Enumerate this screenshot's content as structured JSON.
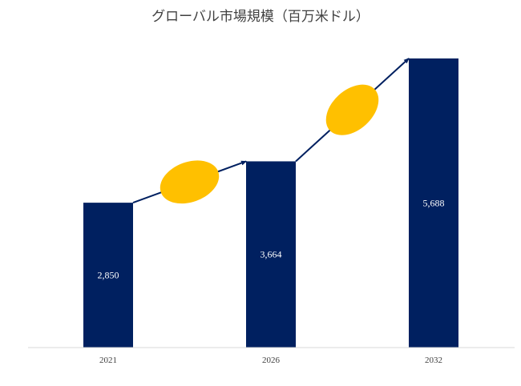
{
  "chart_data": {
    "type": "bar",
    "title": "グローバル市場規模（百万米ドル）",
    "categories": [
      "2021",
      "2026",
      "2032"
    ],
    "values": [
      2850,
      3664,
      5688
    ],
    "value_labels": [
      "2,850",
      "3,664",
      "5,688"
    ],
    "ylim": [
      0,
      5688
    ],
    "grid": false,
    "legend": "none",
    "colors": {
      "bar": "#002060",
      "arrow": "#002060",
      "ellipse": "#FFC000",
      "axis": "#d9d9d9",
      "text": "#404040",
      "data_label": "#ffffff"
    },
    "annotations": [
      {
        "type": "arrow-with-ellipse",
        "from": "2021",
        "to": "2026",
        "text": ""
      },
      {
        "type": "arrow-with-ellipse",
        "from": "2026",
        "to": "2032",
        "text": ""
      }
    ]
  }
}
